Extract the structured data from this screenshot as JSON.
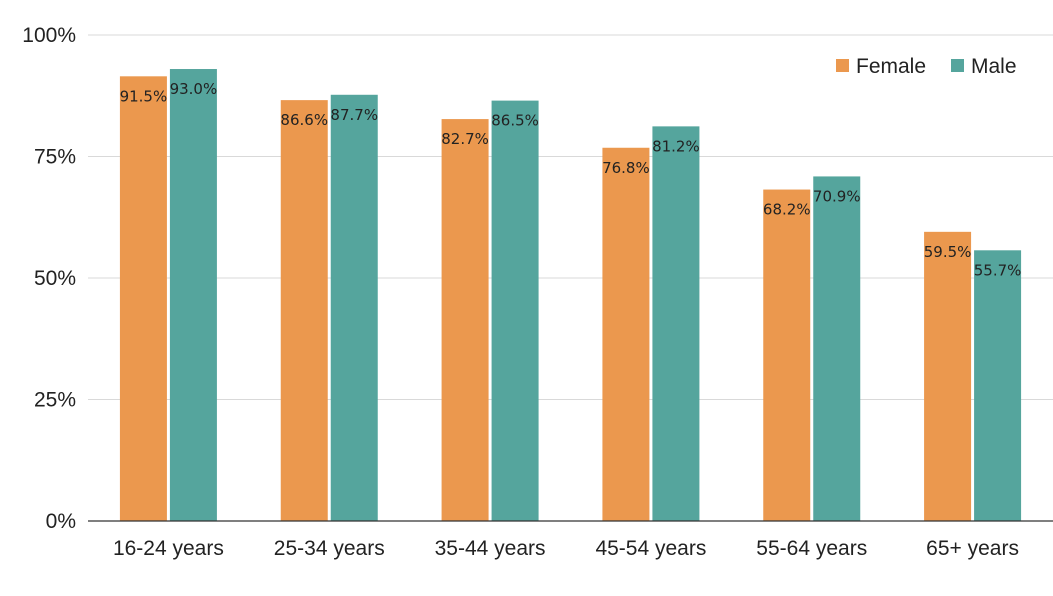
{
  "chart_data": {
    "type": "bar",
    "categories": [
      "16-24 years",
      "25-34 years",
      "35-44 years",
      "45-54 years",
      "55-64 years",
      "65+ years"
    ],
    "series": [
      {
        "name": "Female",
        "color": "#EB984E",
        "values": [
          91.5,
          86.6,
          82.7,
          76.8,
          68.2,
          59.5
        ]
      },
      {
        "name": "Male",
        "color": "#55A59D",
        "values": [
          93.0,
          87.7,
          86.5,
          81.2,
          70.9,
          55.7
        ]
      }
    ],
    "data_labels": [
      [
        "91.5%",
        "86.6%",
        "82.7%",
        "76.8%",
        "68.2%",
        "59.5%"
      ],
      [
        "93.0%",
        "87.7%",
        "86.5%",
        "81.2%",
        "70.9%",
        "55.7%"
      ]
    ],
    "y_ticks": [
      0,
      25,
      50,
      75,
      100
    ],
    "y_tick_labels": [
      "0%",
      "25%",
      "50%",
      "75%",
      "100%"
    ],
    "ylim": [
      0,
      100
    ],
    "grid": true,
    "legend_position": "top-right",
    "gridline_color": "#D9D9D9",
    "axis_color": "#333333"
  }
}
